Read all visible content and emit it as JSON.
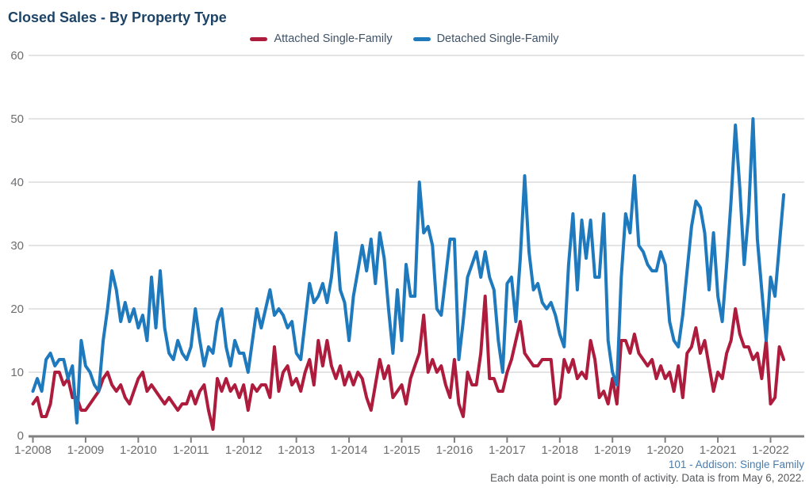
{
  "title": "Closed Sales - By Property Type",
  "legend": {
    "items": [
      {
        "label": "Attached Single-Family",
        "color": "#ae1c3d"
      },
      {
        "label": "Detached Single-Family",
        "color": "#1f79bd"
      }
    ]
  },
  "footer": {
    "line1": "101 - Addison: Single Family",
    "line2": "Each data point is one month of activity. Data is from May 6, 2022."
  },
  "colors": {
    "title": "#1d4467",
    "legend_text": "#3f5266",
    "axis_labels": "#6d6e70",
    "gridline": "#c9c9c9",
    "axis_line": "#808080",
    "footer_link": "#4a7dad",
    "footer_note": "#58595b",
    "attached_line": "#ae1c3d",
    "detached_line": "#1f79bd"
  },
  "chart_data": {
    "type": "line",
    "title": "Closed Sales - By Property Type",
    "x_start": "2008-01",
    "x_end": "2022-04",
    "points_per_series": 172,
    "x_tick_labels": [
      "1-2008",
      "1-2009",
      "1-2010",
      "1-2011",
      "1-2012",
      "1-2013",
      "1-2014",
      "1-2015",
      "1-2016",
      "1-2017",
      "1-2018",
      "1-2019",
      "1-2020",
      "1-2021",
      "1-2022"
    ],
    "y_ticks": [
      0,
      10,
      20,
      30,
      40,
      50,
      60
    ],
    "ylim": [
      0,
      60
    ],
    "grid": true,
    "legend_position": "top-center",
    "series": [
      {
        "name": "Attached Single-Family",
        "color": "#ae1c3d",
        "values": [
          5,
          6,
          3,
          3,
          5,
          10,
          10,
          8,
          9,
          6,
          6,
          4,
          4,
          5,
          6,
          7,
          9,
          10,
          8,
          7,
          8,
          6,
          5,
          7,
          9,
          10,
          7,
          8,
          7,
          6,
          5,
          6,
          5,
          4,
          5,
          5,
          7,
          5,
          7,
          8,
          4,
          1,
          9,
          7,
          9,
          7,
          8,
          6,
          8,
          4,
          8,
          7,
          8,
          8,
          6,
          14,
          7,
          10,
          11,
          8,
          9,
          7,
          10,
          12,
          8,
          15,
          11,
          15,
          11,
          9,
          11,
          8,
          10,
          8,
          10,
          9,
          6,
          4,
          8,
          12,
          9,
          11,
          6,
          7,
          8,
          5,
          9,
          11,
          13,
          19,
          10,
          12,
          10,
          11,
          8,
          6,
          12,
          5,
          3,
          10,
          8,
          8,
          13,
          22,
          9,
          9,
          7,
          7,
          10,
          12,
          15,
          18,
          13,
          12,
          11,
          11,
          12,
          12,
          12,
          5,
          6,
          12,
          10,
          12,
          9,
          10,
          9,
          15,
          12,
          6,
          7,
          5,
          9,
          5,
          15,
          15,
          13,
          16,
          13,
          12,
          11,
          12,
          9,
          11,
          9,
          10,
          7,
          11,
          6,
          13,
          14,
          17,
          13,
          15,
          11,
          7,
          10,
          9,
          13,
          15,
          20,
          16,
          14,
          14,
          12,
          13,
          9,
          15,
          5,
          6,
          14,
          12
        ]
      },
      {
        "name": "Detached Single-Family",
        "color": "#1f79bd",
        "values": [
          7,
          9,
          7,
          12,
          13,
          11,
          12,
          12,
          9,
          11,
          2,
          15,
          11,
          10,
          8,
          7,
          15,
          20,
          26,
          23,
          18,
          21,
          18,
          20,
          17,
          19,
          15,
          25,
          17,
          26,
          17,
          13,
          12,
          15,
          13,
          12,
          14,
          20,
          15,
          11,
          14,
          13,
          18,
          20,
          14,
          11,
          15,
          13,
          13,
          10,
          15,
          20,
          17,
          20,
          23,
          19,
          20,
          19,
          17,
          18,
          13,
          12,
          18,
          24,
          21,
          22,
          24,
          21,
          25,
          32,
          23,
          21,
          15,
          22,
          26,
          30,
          26,
          31,
          24,
          32,
          28,
          20,
          13,
          23,
          15,
          27,
          22,
          22,
          40,
          32,
          33,
          30,
          20,
          19,
          25,
          31,
          31,
          12,
          18,
          25,
          27,
          29,
          25,
          29,
          25,
          23,
          15,
          10,
          24,
          25,
          18,
          28,
          41,
          29,
          23,
          24,
          21,
          20,
          21,
          19,
          16,
          14,
          27,
          35,
          23,
          34,
          28,
          34,
          25,
          25,
          35,
          15,
          10,
          8,
          25,
          35,
          32,
          41,
          30,
          29,
          27,
          26,
          26,
          29,
          27,
          18,
          15,
          14,
          19,
          26,
          33,
          37,
          36,
          32,
          23,
          32,
          22,
          18,
          27,
          37,
          49,
          39,
          27,
          35,
          50,
          31,
          23,
          15,
          25,
          22,
          30,
          38
        ]
      }
    ]
  }
}
